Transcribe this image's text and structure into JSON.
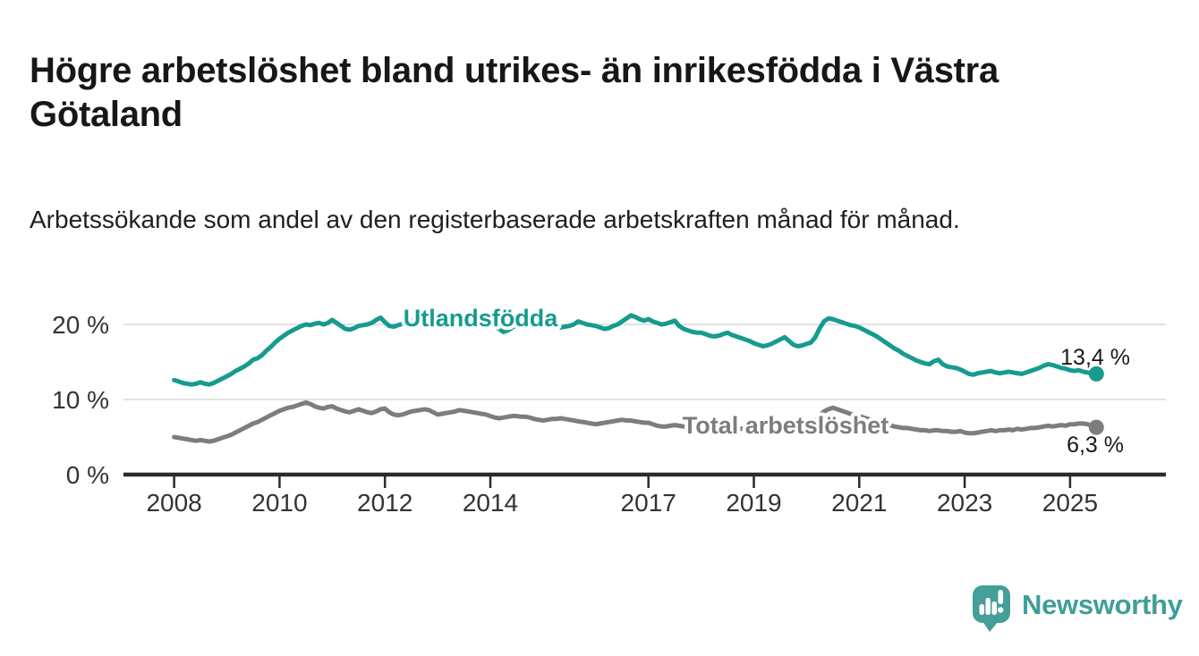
{
  "page": {
    "title": "Högre arbetslöshet bland utrikes- än inrikesfödda i Västra Götaland",
    "subtitle": "Arbetssökande som andel av den registerbaserade arbetskraften månad för månad."
  },
  "colors": {
    "accent_teal": "#169b8f",
    "series_gray": "#7d7d7d",
    "logo_teal": "#459e98",
    "value_label_text": "#1a1a1a",
    "axis_text": "#333333",
    "gridline": "#d9d9d9",
    "axis_line": "#2b2b2b"
  },
  "chart_data": {
    "type": "line",
    "title": "",
    "xlabel": "",
    "ylabel": "%",
    "x_start_year": 2008,
    "x_step": "monthly",
    "x_end_label_period": "2025-07",
    "x_tick_years": [
      2008,
      2010,
      2012,
      2014,
      2017,
      2019,
      2021,
      2023,
      2025
    ],
    "y_ticks": [
      {
        "value": 0,
        "label": "0 %"
      },
      {
        "value": 10,
        "label": "10 %"
      },
      {
        "value": 20,
        "label": "20 %"
      }
    ],
    "ylim": [
      0,
      24
    ],
    "grid": true,
    "legend_position": "inline-labels",
    "series": [
      {
        "id": "utlandsfodda",
        "name": "Utlandsfödda",
        "color": "#169b8f",
        "end_label": "13,4 %",
        "last_value": 13.4,
        "values": [
          12.6,
          12.4,
          12.2,
          12.1,
          12.0,
          12.1,
          12.3,
          12.1,
          12.0,
          12.2,
          12.5,
          12.8,
          13.1,
          13.4,
          13.8,
          14.1,
          14.4,
          14.8,
          15.3,
          15.5,
          15.9,
          16.5,
          17.0,
          17.6,
          18.1,
          18.5,
          18.9,
          19.2,
          19.5,
          19.8,
          20.0,
          19.9,
          20.1,
          20.2,
          20.0,
          20.2,
          20.6,
          20.2,
          19.8,
          19.4,
          19.3,
          19.5,
          19.8,
          19.9,
          20.0,
          20.2,
          20.6,
          20.9,
          20.3,
          19.8,
          19.7,
          19.9,
          20.1,
          20.3,
          20.6,
          20.4,
          20.2,
          20.1,
          20.3,
          20.5,
          20.7,
          20.4,
          20.2,
          20.0,
          19.9,
          20.1,
          20.4,
          20.3,
          20.1,
          20.0,
          20.2,
          20.4,
          20.0,
          19.7,
          19.4,
          19.0,
          19.2,
          19.6,
          19.9,
          20.0,
          19.9,
          19.8,
          20.0,
          20.2,
          20.3,
          20.0,
          19.8,
          19.7,
          19.6,
          19.7,
          19.8,
          20.0,
          20.4,
          20.2,
          20.0,
          19.9,
          19.8,
          19.6,
          19.4,
          19.5,
          19.8,
          20.0,
          20.4,
          20.8,
          21.2,
          21.0,
          20.7,
          20.5,
          20.7,
          20.4,
          20.2,
          20.0,
          20.1,
          20.3,
          20.5,
          19.8,
          19.4,
          19.2,
          19.0,
          18.9,
          18.9,
          18.7,
          18.5,
          18.4,
          18.5,
          18.7,
          18.9,
          18.6,
          18.4,
          18.2,
          18.0,
          17.8,
          17.5,
          17.3,
          17.1,
          17.2,
          17.4,
          17.7,
          18.0,
          18.3,
          17.8,
          17.3,
          17.1,
          17.2,
          17.4,
          17.6,
          18.3,
          19.5,
          20.4,
          20.8,
          20.7,
          20.5,
          20.3,
          20.1,
          19.9,
          19.8,
          19.6,
          19.3,
          19.0,
          18.7,
          18.4,
          18.0,
          17.6,
          17.2,
          16.8,
          16.5,
          16.1,
          15.8,
          15.5,
          15.2,
          15.0,
          14.8,
          14.7,
          15.1,
          15.3,
          14.7,
          14.4,
          14.3,
          14.2,
          14.0,
          13.7,
          13.4,
          13.3,
          13.5,
          13.6,
          13.7,
          13.8,
          13.6,
          13.5,
          13.6,
          13.7,
          13.6,
          13.5,
          13.4,
          13.6,
          13.8,
          14.0,
          14.2,
          14.5,
          14.7,
          14.6,
          14.4,
          14.2,
          14.1,
          13.9,
          13.8,
          13.9,
          13.7,
          13.6,
          13.4,
          13.4
        ]
      },
      {
        "id": "total-arbetsloshet",
        "name": "Total arbetslöshet",
        "color": "#7d7d7d",
        "end_label": "6,3 %",
        "last_value": 6.3,
        "values": [
          5.0,
          4.9,
          4.8,
          4.7,
          4.6,
          4.5,
          4.6,
          4.5,
          4.4,
          4.5,
          4.7,
          4.9,
          5.1,
          5.3,
          5.6,
          5.9,
          6.2,
          6.5,
          6.8,
          7.0,
          7.3,
          7.6,
          7.9,
          8.2,
          8.5,
          8.7,
          8.9,
          9.0,
          9.2,
          9.4,
          9.6,
          9.4,
          9.1,
          8.9,
          8.8,
          9.0,
          9.1,
          8.8,
          8.6,
          8.4,
          8.3,
          8.5,
          8.7,
          8.5,
          8.3,
          8.2,
          8.4,
          8.7,
          8.8,
          8.3,
          8.0,
          7.9,
          8.0,
          8.2,
          8.4,
          8.5,
          8.6,
          8.7,
          8.6,
          8.3,
          8.0,
          8.1,
          8.2,
          8.3,
          8.4,
          8.6,
          8.5,
          8.4,
          8.3,
          8.2,
          8.1,
          8.0,
          7.8,
          7.6,
          7.5,
          7.6,
          7.7,
          7.8,
          7.8,
          7.7,
          7.7,
          7.6,
          7.4,
          7.3,
          7.2,
          7.3,
          7.4,
          7.4,
          7.5,
          7.4,
          7.3,
          7.2,
          7.1,
          7.0,
          6.9,
          6.8,
          6.7,
          6.8,
          6.9,
          7.0,
          7.1,
          7.2,
          7.3,
          7.2,
          7.2,
          7.1,
          7.0,
          6.9,
          6.9,
          6.7,
          6.5,
          6.4,
          6.4,
          6.5,
          6.6,
          6.5,
          6.4,
          6.3,
          6.3,
          6.4,
          6.4,
          6.3,
          6.2,
          6.1,
          6.1,
          6.2,
          6.4,
          6.3,
          6.2,
          6.1,
          6.1,
          6.2,
          6.3,
          6.2,
          6.1,
          6.1,
          6.2,
          6.4,
          6.6,
          6.5,
          6.4,
          6.4,
          6.5,
          6.6,
          6.7,
          6.8,
          7.1,
          7.9,
          8.4,
          8.7,
          8.9,
          8.7,
          8.5,
          8.3,
          8.1,
          7.9,
          7.8,
          7.6,
          7.4,
          7.2,
          7.0,
          6.9,
          6.8,
          6.6,
          6.4,
          6.3,
          6.2,
          6.2,
          6.1,
          6.0,
          5.9,
          5.9,
          5.8,
          5.9,
          5.9,
          5.8,
          5.8,
          5.7,
          5.7,
          5.8,
          5.6,
          5.5,
          5.5,
          5.6,
          5.7,
          5.8,
          5.9,
          5.8,
          5.9,
          5.9,
          6.0,
          5.9,
          6.1,
          6.0,
          6.1,
          6.2,
          6.2,
          6.3,
          6.4,
          6.5,
          6.4,
          6.5,
          6.6,
          6.5,
          6.7,
          6.7,
          6.8,
          6.8,
          6.7,
          6.5,
          6.3
        ]
      }
    ]
  },
  "branding": {
    "logo_text": "Newsworthy",
    "logo_icon": "bar-chart-speech-bubble-icon"
  }
}
